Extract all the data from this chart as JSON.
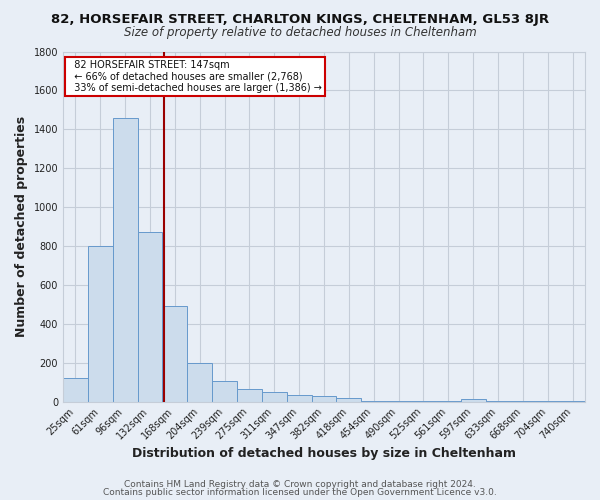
{
  "title": "82, HORSEFAIR STREET, CHARLTON KINGS, CHELTENHAM, GL53 8JR",
  "subtitle": "Size of property relative to detached houses in Cheltenham",
  "xlabel": "Distribution of detached houses by size in Cheltenham",
  "ylabel": "Number of detached properties",
  "footer1": "Contains HM Land Registry data © Crown copyright and database right 2024.",
  "footer2": "Contains public sector information licensed under the Open Government Licence v3.0.",
  "bar_labels": [
    "25sqm",
    "61sqm",
    "96sqm",
    "132sqm",
    "168sqm",
    "204sqm",
    "239sqm",
    "275sqm",
    "311sqm",
    "347sqm",
    "382sqm",
    "418sqm",
    "454sqm",
    "490sqm",
    "525sqm",
    "561sqm",
    "597sqm",
    "633sqm",
    "668sqm",
    "704sqm",
    "740sqm"
  ],
  "bar_values": [
    120,
    800,
    1460,
    870,
    490,
    200,
    105,
    65,
    50,
    35,
    30,
    20,
    5,
    3,
    2,
    2,
    15,
    2,
    1,
    1,
    1
  ],
  "bar_color": "#ccdcec",
  "bar_edge_color": "#6699cc",
  "bg_color": "#e8eef6",
  "grid_color": "#c5cdd8",
  "redline_color": "#990000",
  "ylim": [
    0,
    1800
  ],
  "yticks": [
    0,
    200,
    400,
    600,
    800,
    1000,
    1200,
    1400,
    1600,
    1800
  ],
  "legend_title": "82 HORSEFAIR STREET: 147sqm",
  "legend_line1": "← 66% of detached houses are smaller (2,768)",
  "legend_line2": "33% of semi-detached houses are larger (1,386) →",
  "legend_box_color": "#ffffff",
  "legend_box_edge": "#cc0000",
  "title_fontsize": 9.5,
  "subtitle_fontsize": 8.5,
  "axis_label_fontsize": 9,
  "tick_fontsize": 7,
  "footer_fontsize": 6.5
}
